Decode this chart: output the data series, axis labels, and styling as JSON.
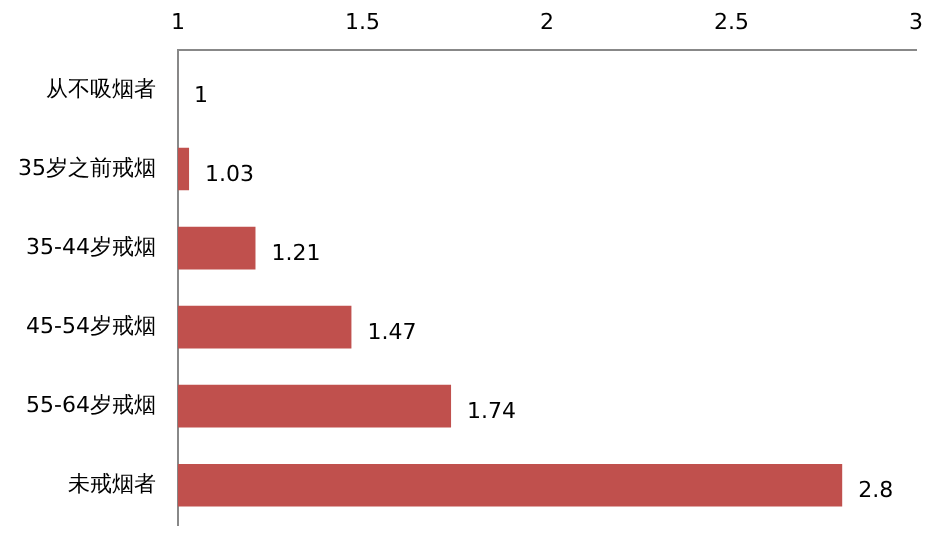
{
  "chart_data": {
    "type": "bar",
    "orientation": "horizontal",
    "categories": [
      "从不吸烟者",
      "35岁之前戒烟",
      "35-44岁戒烟",
      "45-54岁戒烟",
      "55-64岁戒烟",
      "未戒烟者"
    ],
    "values": [
      1,
      1.03,
      1.21,
      1.47,
      1.74,
      2.8
    ],
    "color": "#c0504d",
    "xlim": [
      1,
      3
    ],
    "xticks": [
      1,
      1.5,
      2,
      2.5,
      3
    ],
    "grid": false,
    "data_labels": true
  }
}
